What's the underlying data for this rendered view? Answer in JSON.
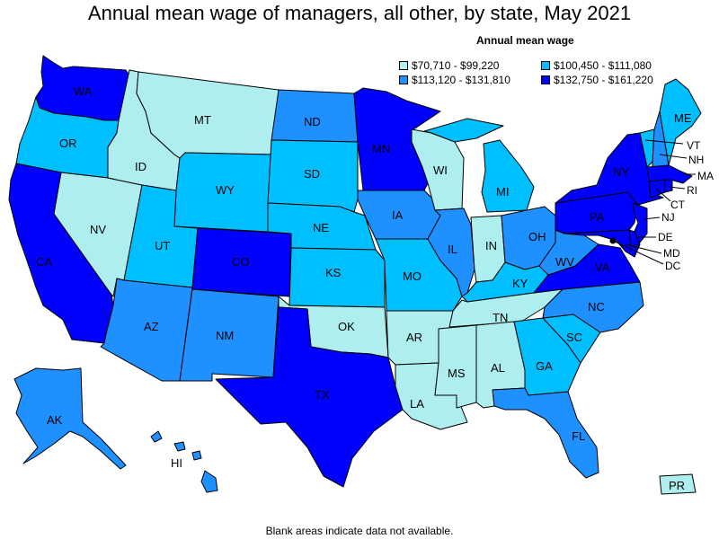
{
  "title": "Annual mean wage of managers, all other, by state, May 2021",
  "legend": {
    "title": "Annual mean wage",
    "items": [
      {
        "label": "$70,710 - $99,220",
        "color": "#aeeeee"
      },
      {
        "label": "$100,450 - $111,080",
        "color": "#00bfff"
      },
      {
        "label": "$113,120 - $131,810",
        "color": "#1e90ff"
      },
      {
        "label": "$132,750 - $161,220",
        "color": "#0000ff"
      }
    ]
  },
  "footnote": "Blank areas indicate data not available.",
  "states": {
    "WA": {
      "label": "WA",
      "color": "#0000ff"
    },
    "OR": {
      "label": "OR",
      "color": "#00bfff"
    },
    "CA": {
      "label": "CA",
      "color": "#0000ff"
    },
    "NV": {
      "label": "NV",
      "color": "#aeeeee"
    },
    "ID": {
      "label": "ID",
      "color": "#aeeeee"
    },
    "MT": {
      "label": "MT",
      "color": "#aeeeee"
    },
    "WY": {
      "label": "WY",
      "color": "#00bfff"
    },
    "UT": {
      "label": "UT",
      "color": "#00bfff"
    },
    "AZ": {
      "label": "AZ",
      "color": "#1e90ff"
    },
    "CO": {
      "label": "CO",
      "color": "#0000ff"
    },
    "NM": {
      "label": "NM",
      "color": "#1e90ff"
    },
    "ND": {
      "label": "ND",
      "color": "#1e90ff"
    },
    "SD": {
      "label": "SD",
      "color": "#00bfff"
    },
    "NE": {
      "label": "NE",
      "color": "#00bfff"
    },
    "KS": {
      "label": "KS",
      "color": "#00bfff"
    },
    "OK": {
      "label": "OK",
      "color": "#aeeeee"
    },
    "TX": {
      "label": "TX",
      "color": "#0000ff"
    },
    "MN": {
      "label": "MN",
      "color": "#0000ff"
    },
    "IA": {
      "label": "IA",
      "color": "#1e90ff"
    },
    "MO": {
      "label": "MO",
      "color": "#00bfff"
    },
    "AR": {
      "label": "AR",
      "color": "#aeeeee"
    },
    "LA": {
      "label": "LA",
      "color": "#aeeeee"
    },
    "WI": {
      "label": "WI",
      "color": "#aeeeee"
    },
    "IL": {
      "label": "IL",
      "color": "#1e90ff"
    },
    "MI": {
      "label": "MI",
      "color": "#00bfff"
    },
    "IN": {
      "label": "IN",
      "color": "#aeeeee"
    },
    "OH": {
      "label": "OH",
      "color": "#1e90ff"
    },
    "KY": {
      "label": "KY",
      "color": "#00bfff"
    },
    "TN": {
      "label": "TN",
      "color": "#aeeeee"
    },
    "MS": {
      "label": "MS",
      "color": "#aeeeee"
    },
    "AL": {
      "label": "AL",
      "color": "#aeeeee"
    },
    "GA": {
      "label": "GA",
      "color": "#00bfff"
    },
    "FL": {
      "label": "FL",
      "color": "#1e90ff"
    },
    "SC": {
      "label": "SC",
      "color": "#00bfff"
    },
    "NC": {
      "label": "NC",
      "color": "#1e90ff"
    },
    "VA": {
      "label": "VA",
      "color": "#0000ff"
    },
    "WV": {
      "label": "WV",
      "color": "#1e90ff"
    },
    "PA": {
      "label": "PA",
      "color": "#0000ff"
    },
    "NY": {
      "label": "NY",
      "color": "#0000ff"
    },
    "ME": {
      "label": "ME",
      "color": "#00bfff"
    },
    "VT": {
      "label": "VT",
      "color": "#00bfff"
    },
    "NH": {
      "label": "NH",
      "color": "#1e90ff"
    },
    "MA": {
      "label": "MA",
      "color": "#0000ff"
    },
    "RI": {
      "label": "RI",
      "color": "#0000ff"
    },
    "CT": {
      "label": "CT",
      "color": "#0000ff"
    },
    "NJ": {
      "label": "NJ",
      "color": "#0000ff"
    },
    "DE": {
      "label": "DE",
      "color": "#0000ff"
    },
    "MD": {
      "label": "MD",
      "color": "#0000ff"
    },
    "DC": {
      "label": "DC",
      "color": "#000000"
    },
    "AK": {
      "label": "AK",
      "color": "#1e90ff"
    },
    "HI": {
      "label": "HI",
      "color": "#1e90ff"
    },
    "PR": {
      "label": "PR",
      "color": "#aeeeee"
    }
  }
}
